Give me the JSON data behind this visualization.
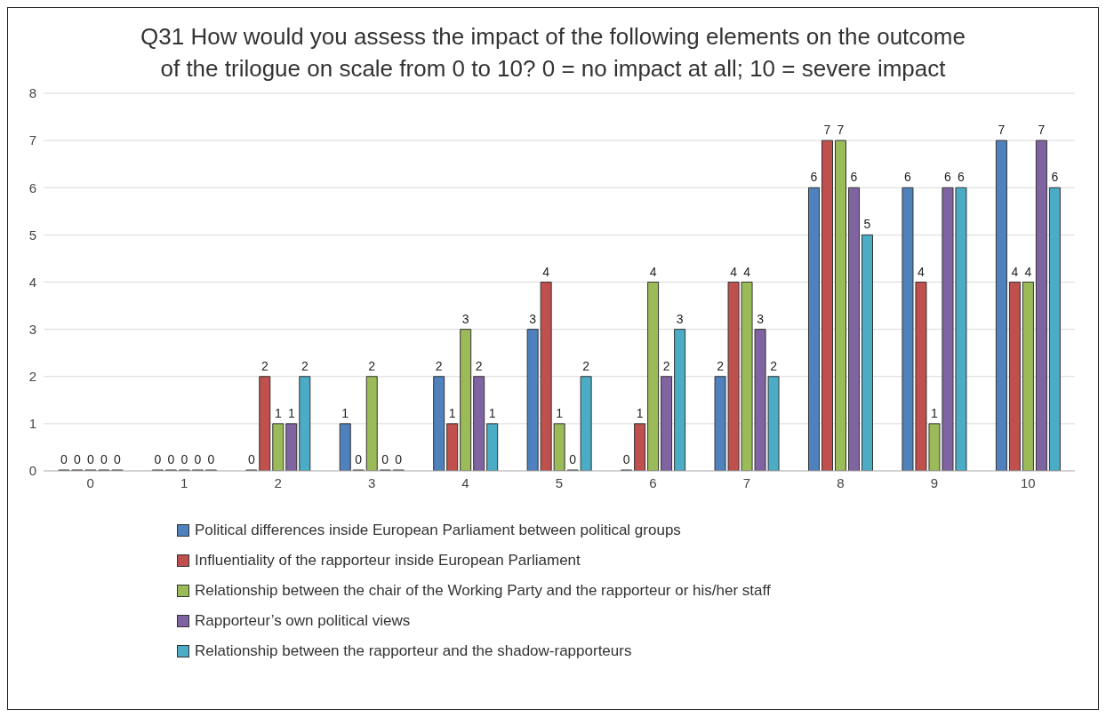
{
  "chart_data": {
    "type": "bar",
    "title": "Q31 How would you assess the impact of the following elements on the outcome of the trilogue on scale from 0 to 10? 0 = no impact at all; 10 = severe impact",
    "categories": [
      "0",
      "1",
      "2",
      "3",
      "4",
      "5",
      "6",
      "7",
      "8",
      "9",
      "10"
    ],
    "series": [
      {
        "name": "Political differences inside European Parliament between political groups",
        "color": "#4f81bd",
        "values": [
          0,
          0,
          0,
          1,
          2,
          3,
          0,
          2,
          6,
          6,
          7
        ]
      },
      {
        "name": "Influentiality of the rapporteur inside European Parliament",
        "color": "#c0504d",
        "values": [
          0,
          0,
          2,
          0,
          1,
          4,
          1,
          4,
          7,
          4,
          4
        ]
      },
      {
        "name": "Relationship between the chair of the Working Party and the rapporteur or his/her staff",
        "color": "#9bbb59",
        "values": [
          0,
          0,
          1,
          2,
          3,
          1,
          4,
          4,
          7,
          1,
          4
        ]
      },
      {
        "name": "Rapporteur’s own political views",
        "color": "#8064a2",
        "values": [
          0,
          0,
          1,
          0,
          2,
          0,
          2,
          3,
          6,
          6,
          7
        ]
      },
      {
        "name": "Relationship between the rapporteur and the shadow-rapporteurs",
        "color": "#4bacc6",
        "values": [
          0,
          0,
          2,
          0,
          1,
          2,
          3,
          2,
          5,
          6,
          6
        ]
      }
    ],
    "ylim": [
      0,
      8
    ],
    "yticks": [
      0,
      1,
      2,
      3,
      4,
      5,
      6,
      7,
      8
    ],
    "grid": "y",
    "legend": "bottom",
    "data_labels": true
  }
}
